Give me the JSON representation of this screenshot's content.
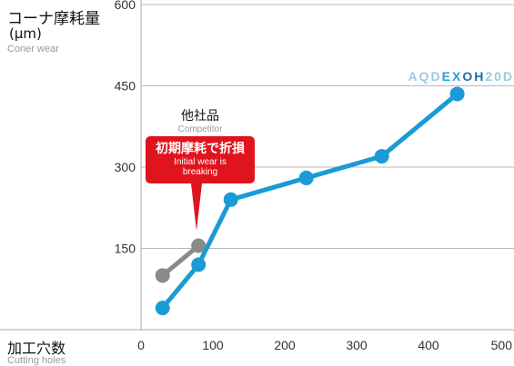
{
  "chart_data": {
    "type": "line",
    "ylabel": "コーナ摩耗量",
    "ylabel_unit": "(μm)",
    "ylabel_en": "Coner wear",
    "xlabel": "加工穴数",
    "xlabel_en": "Cutting holes",
    "xlim": [
      0,
      500
    ],
    "ylim": [
      0,
      600
    ],
    "x_ticks": [
      "0",
      "100",
      "200",
      "300",
      "400",
      "500"
    ],
    "y_ticks": [
      "150",
      "300",
      "450",
      "600"
    ],
    "y_tick_values": [
      150,
      300,
      450,
      600
    ],
    "x_tick_values": [
      0,
      100,
      200,
      300,
      400,
      500
    ],
    "grid": "horizontal",
    "series": [
      {
        "name": "AQDEXOH20D",
        "color": "#1a9ad6",
        "points": [
          [
            30,
            40
          ],
          [
            80,
            120
          ],
          [
            125,
            240
          ],
          [
            230,
            280
          ],
          [
            335,
            320
          ],
          [
            440,
            435
          ]
        ]
      },
      {
        "name": "他社品",
        "name_en": "Competitor",
        "color": "#8a8a8a",
        "points": [
          [
            30,
            100
          ],
          [
            80,
            155
          ]
        ]
      }
    ],
    "brand": {
      "prefix": "AQD",
      "mid": "EX",
      "oh": "OH",
      "suffix": "20D"
    },
    "annotation": {
      "jp": "初期摩耗で折損",
      "en_line1": "Initial wear is",
      "en_line2": "breaking",
      "color": "#e0141e"
    }
  }
}
